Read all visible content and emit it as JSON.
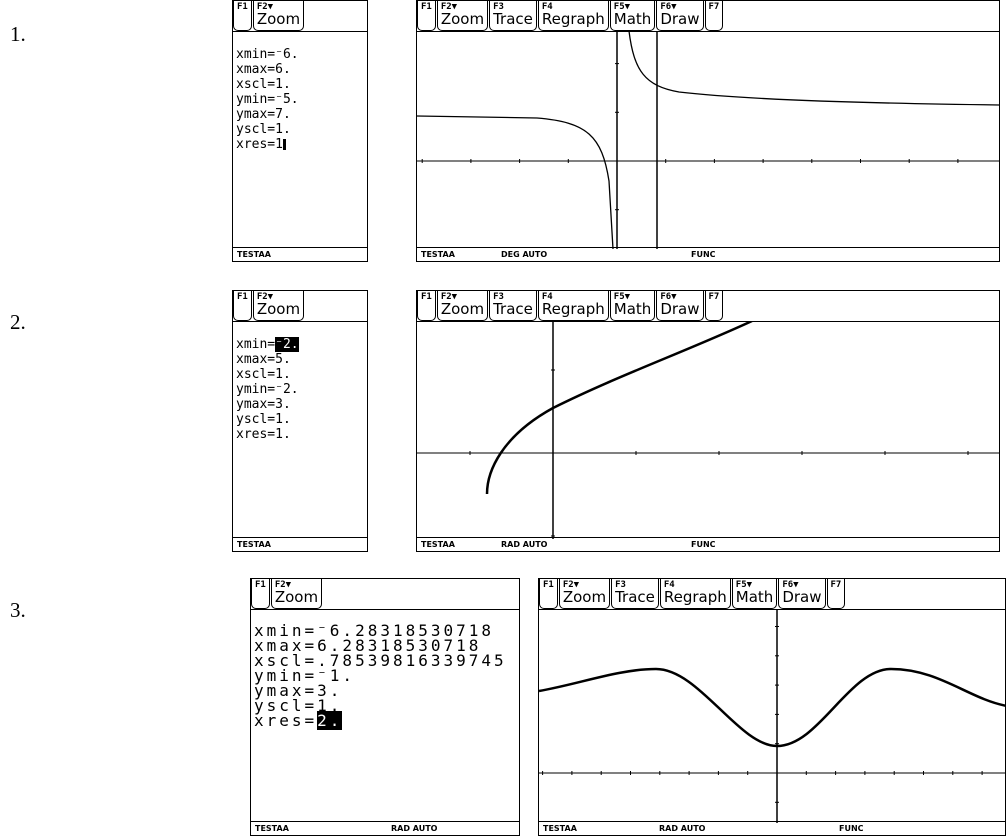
{
  "items": [
    {
      "number": "1.",
      "window": {
        "toolbar": [
          {
            "key": "F1"
          },
          {
            "key": "F2▼",
            "label": "Zoom"
          }
        ],
        "lines": [
          {
            "text": "xmin=⁻6."
          },
          {
            "text": "xmax=6."
          },
          {
            "text": "xscl=1."
          },
          {
            "text": "ymin=⁻5."
          },
          {
            "text": "ymax=7."
          },
          {
            "text": "yscl=1."
          },
          {
            "text": "xres=1"
          }
        ],
        "status": [
          "TESTAA"
        ]
      },
      "graph": {
        "toolbar": [
          {
            "key": "F1"
          },
          {
            "key": "F2▼",
            "label": "Zoom"
          },
          {
            "key": "F3",
            "label": "Trace"
          },
          {
            "key": "F4",
            "label": "Regraph"
          },
          {
            "key": "F5▼",
            "label": "Math"
          },
          {
            "key": "F6▼",
            "label": "Draw"
          },
          {
            "key": "F7"
          }
        ],
        "status": [
          "TESTAA",
          "DEG AUTO",
          "FUNC"
        ]
      }
    },
    {
      "number": "2.",
      "window": {
        "toolbar": [
          {
            "key": "F1"
          },
          {
            "key": "F2▼",
            "label": "Zoom"
          }
        ],
        "lines": [
          {
            "text": "xmin=",
            "highlight": "⁻2."
          },
          {
            "text": "xmax=5."
          },
          {
            "text": "xscl=1."
          },
          {
            "text": "ymin=⁻2."
          },
          {
            "text": "ymax=3."
          },
          {
            "text": "yscl=1."
          },
          {
            "text": "xres=1."
          }
        ],
        "status": [
          "TESTAA"
        ]
      },
      "graph": {
        "toolbar": [
          {
            "key": "F1"
          },
          {
            "key": "F2▼",
            "label": "Zoom"
          },
          {
            "key": "F3",
            "label": "Trace"
          },
          {
            "key": "F4",
            "label": "Regraph"
          },
          {
            "key": "F5▼",
            "label": "Math"
          },
          {
            "key": "F6▼",
            "label": "Draw"
          },
          {
            "key": "F7"
          }
        ],
        "status": [
          "TESTAA",
          "RAD AUTO",
          "FUNC"
        ]
      }
    },
    {
      "number": "3.",
      "window": {
        "toolbar": [
          {
            "key": "F1"
          },
          {
            "key": "F2▼",
            "label": "Zoom"
          }
        ],
        "lines": [
          {
            "text": "xmin=⁻6.28318530718"
          },
          {
            "text": "xmax=6.28318530718"
          },
          {
            "text": "xscl=.78539816339745"
          },
          {
            "text": "ymin=⁻1."
          },
          {
            "text": "ymax=3."
          },
          {
            "text": "yscl=1."
          },
          {
            "text": "xres=",
            "highlight": "2."
          }
        ],
        "status": [
          "TESTAA",
          "RAD AUTO"
        ]
      },
      "graph": {
        "toolbar": [
          {
            "key": "F1"
          },
          {
            "key": "F2▼",
            "label": "Zoom"
          },
          {
            "key": "F3",
            "label": "Trace"
          },
          {
            "key": "F4",
            "label": "Regraph"
          },
          {
            "key": "F5▼",
            "label": "Math"
          },
          {
            "key": "F6▼",
            "label": "Draw"
          },
          {
            "key": "F7"
          }
        ],
        "status": [
          "TESTAA",
          "RAD AUTO",
          "FUNC"
        ]
      }
    }
  ]
}
